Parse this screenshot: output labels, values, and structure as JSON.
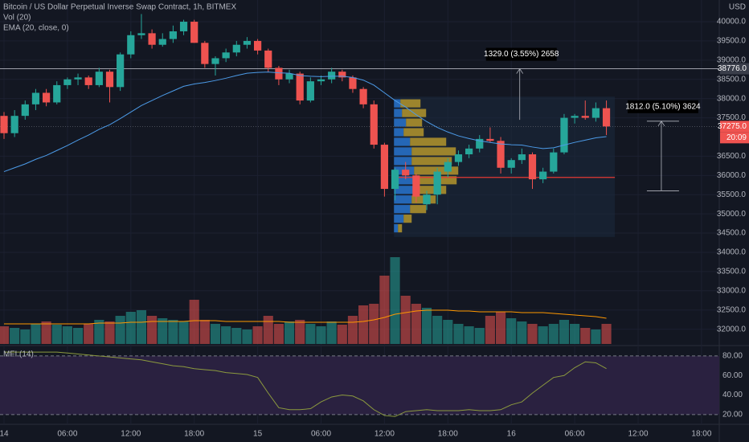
{
  "chart_data": [
    {
      "type": "candlestick",
      "title": "Bitcoin / US Dollar Perpetual Inverse Swap Contract, 1h, BITMEX",
      "unit": "USD",
      "x": [
        0,
        1,
        2,
        3,
        4,
        5,
        6,
        7,
        8,
        9,
        10,
        11,
        12,
        13,
        14,
        15,
        16,
        17,
        18,
        19,
        20,
        21,
        22,
        23,
        24,
        25,
        26,
        27,
        28,
        29,
        30,
        31,
        32,
        33,
        34,
        35,
        36,
        37,
        38,
        39,
        40,
        41,
        42,
        43,
        44,
        45,
        46,
        47,
        48,
        49,
        50,
        51,
        52,
        53,
        54,
        55,
        56,
        57
      ],
      "open": [
        37550,
        37100,
        37550,
        37850,
        38150,
        37900,
        38350,
        38500,
        38550,
        38350,
        38700,
        38300,
        39150,
        39650,
        39700,
        39400,
        39550,
        39750,
        40000,
        39450,
        38900,
        39050,
        39200,
        39400,
        39500,
        39250,
        38800,
        38500,
        38650,
        37950,
        38450,
        38500,
        38700,
        38550,
        38250,
        37850,
        36800,
        35650,
        36150,
        36000,
        35250,
        35500,
        36100,
        36350,
        36550,
        36700,
        36950,
        36900,
        36200,
        36400,
        36550,
        35900,
        36100,
        36600,
        37500,
        37550,
        37500,
        37750
      ],
      "high": [
        37650,
        37700,
        37950,
        38250,
        38250,
        38450,
        38550,
        38650,
        38600,
        38800,
        38750,
        39200,
        39750,
        40200,
        39800,
        39700,
        39900,
        40050,
        40050,
        39500,
        39100,
        39300,
        39500,
        39600,
        39550,
        39300,
        38850,
        38750,
        38700,
        38550,
        38600,
        38800,
        38750,
        38600,
        38300,
        37950,
        36850,
        36200,
        36350,
        36050,
        35600,
        36200,
        36450,
        36650,
        36800,
        37050,
        37250,
        37000,
        36450,
        36700,
        36600,
        36200,
        36700,
        37600,
        37600,
        37950,
        37900,
        37950
      ],
      "low": [
        36950,
        37000,
        37450,
        37700,
        37800,
        37850,
        38250,
        38350,
        38250,
        38300,
        37900,
        38200,
        39050,
        39550,
        39300,
        39350,
        39450,
        39650,
        39450,
        38800,
        38600,
        38950,
        39100,
        39300,
        39150,
        38700,
        38350,
        38400,
        37850,
        37900,
        38350,
        38400,
        38450,
        38150,
        37750,
        36700,
        35450,
        35350,
        35900,
        35300,
        35100,
        35250,
        35950,
        36250,
        36450,
        36600,
        36850,
        36050,
        36050,
        36300,
        35650,
        35800,
        36050,
        36550,
        37350,
        37450,
        37400,
        37050
      ],
      "close": [
        37100,
        37550,
        37850,
        38150,
        37900,
        38350,
        38500,
        38550,
        38350,
        38700,
        38300,
        39150,
        39650,
        39700,
        39400,
        39550,
        39750,
        40000,
        39450,
        38900,
        39050,
        39200,
        39400,
        39500,
        39250,
        38800,
        38500,
        38650,
        37950,
        38450,
        38500,
        38700,
        38550,
        38250,
        37850,
        36800,
        35650,
        36150,
        36000,
        35450,
        35500,
        36100,
        36350,
        36550,
        36700,
        36950,
        36900,
        36200,
        36400,
        36550,
        35900,
        36100,
        36600,
        37500,
        37550,
        37500,
        37750,
        37275
      ],
      "up_color": "#26a69a",
      "down_color": "#ef5350",
      "ema": {
        "name": "EMA (20, close, 0)",
        "color": "#4c9be8",
        "values": [
          36100,
          36200,
          36300,
          36420,
          36520,
          36650,
          36780,
          36920,
          37050,
          37200,
          37320,
          37480,
          37650,
          37820,
          37950,
          38080,
          38200,
          38320,
          38380,
          38420,
          38470,
          38530,
          38600,
          38660,
          38680,
          38690,
          38670,
          38660,
          38600,
          38580,
          38570,
          38580,
          38580,
          38550,
          38480,
          38350,
          38150,
          37950,
          37780,
          37580,
          37400,
          37250,
          37130,
          37030,
          36960,
          36900,
          36860,
          36820,
          36800,
          36790,
          36740,
          36700,
          36720,
          36790,
          36860,
          36920,
          36980,
          37010
        ]
      },
      "ylim": [
        31574,
        40565
      ],
      "yticks": [
        {
          "value": 32000,
          "label": "32000.0"
        },
        {
          "value": 32500,
          "label": "32500.0"
        },
        {
          "value": 33000,
          "label": "33000.0"
        },
        {
          "value": 33500,
          "label": "33500.0"
        },
        {
          "value": 34000,
          "label": "34000.0"
        },
        {
          "value": 34500,
          "label": "34500.0"
        },
        {
          "value": 35000,
          "label": "35000.0"
        },
        {
          "value": 35500,
          "label": "35500.0"
        },
        {
          "value": 36000,
          "label": "36000.0"
        },
        {
          "value": 36500,
          "label": "36500.0"
        },
        {
          "value": 37500,
          "label": "37500.0"
        },
        {
          "value": 38000,
          "label": "38000.0"
        },
        {
          "value": 38500,
          "label": "38500.0"
        },
        {
          "value": 39000,
          "label": "39000.0"
        },
        {
          "value": 39500,
          "label": "39500.0"
        },
        {
          "value": 40000,
          "label": "40000.0"
        }
      ],
      "price_markers": [
        {
          "value": 38776,
          "label": "38776.0",
          "color": "#3a3e4a"
        },
        {
          "value": 37275,
          "label": "37275.0",
          "color": "#ef5350"
        }
      ],
      "countdown": "20:09",
      "volume_profile": {
        "x_from": 36.9,
        "x_to": 57.8,
        "price_from": 34400,
        "price_to": 38050,
        "poc": 35950,
        "prices": [
          37875,
          37625,
          37375,
          37125,
          36875,
          36625,
          36375,
          36125,
          35875,
          35625,
          35375,
          35125,
          34875,
          34625
        ],
        "up": [
          8,
          10,
          15,
          12,
          20,
          22,
          22,
          25,
          28,
          25,
          22,
          20,
          12,
          5
        ],
        "down": [
          25,
          30,
          20,
          25,
          45,
          55,
          50,
          55,
          50,
          40,
          30,
          20,
          10,
          5
        ],
        "up_color": "#2979d8",
        "down_color": "#c9a52c"
      },
      "measures": [
        {
          "label": "1329.0 (3.55%) 2658",
          "x": 48.8,
          "from": 37447,
          "to": 38776
        },
        {
          "label": "1812.0 (5.10%) 3624",
          "x": 62.2,
          "from": 35600,
          "to": 37412
        }
      ]
    },
    {
      "type": "bar",
      "title": "Vol (20)",
      "values": [
        22,
        20,
        18,
        25,
        28,
        24,
        22,
        20,
        25,
        30,
        28,
        35,
        40,
        42,
        35,
        32,
        30,
        28,
        55,
        30,
        25,
        22,
        20,
        18,
        22,
        35,
        25,
        28,
        30,
        25,
        22,
        28,
        24,
        35,
        48,
        50,
        85,
        108,
        60,
        50,
        45,
        35,
        30,
        25,
        22,
        20,
        35,
        40,
        32,
        28,
        25,
        22,
        25,
        30,
        25,
        20,
        18,
        25
      ],
      "ma": {
        "color": "#ff9800",
        "values": [
          25,
          25,
          25,
          25,
          25,
          25,
          25,
          25,
          25,
          26,
          26,
          26,
          27,
          27,
          28,
          28,
          28,
          28,
          29,
          29,
          29,
          28,
          28,
          28,
          28,
          28,
          28,
          27,
          27,
          27,
          27,
          27,
          27,
          27,
          28,
          30,
          33,
          37,
          39,
          41,
          42,
          42,
          42,
          41,
          41,
          40,
          40,
          40,
          40,
          39,
          39,
          39,
          38,
          37,
          36,
          35,
          34,
          32
        ]
      },
      "ylim": [
        0,
        110
      ]
    },
    {
      "type": "line",
      "title": "MFI (14)",
      "color": "#8c9a3e",
      "band_color": "#2a2140",
      "values": [
        84,
        84,
        84,
        84,
        84,
        84,
        83,
        82,
        81,
        80,
        79,
        78,
        77,
        76,
        74,
        72,
        70,
        69,
        67,
        66,
        65,
        63,
        62,
        61,
        58,
        42,
        27,
        25,
        25,
        26,
        33,
        38,
        40,
        39,
        34,
        25,
        19,
        18,
        23,
        24,
        25,
        24,
        24,
        24,
        25,
        24,
        24,
        25,
        30,
        33,
        42,
        50,
        58,
        60,
        68,
        74,
        73,
        67
      ],
      "ylim": [
        10,
        89
      ],
      "yticks": [
        {
          "value": 20,
          "label": "20.00"
        },
        {
          "value": 40,
          "label": "40.00"
        },
        {
          "value": 60,
          "label": "60.00"
        },
        {
          "value": 80,
          "label": "80.00"
        }
      ],
      "bands": [
        20,
        80
      ],
      "xlim": [
        -0.38,
        67.68
      ],
      "xticks": [
        {
          "value": 0,
          "label": "14"
        },
        {
          "value": 6,
          "label": "06:00"
        },
        {
          "value": 12,
          "label": "12:00"
        },
        {
          "value": 18,
          "label": "18:00"
        },
        {
          "value": 24,
          "label": "15"
        },
        {
          "value": 30,
          "label": "06:00"
        },
        {
          "value": 36,
          "label": "12:00"
        },
        {
          "value": 42,
          "label": "18:00"
        },
        {
          "value": 48,
          "label": "16"
        },
        {
          "value": 54,
          "label": "06:00"
        },
        {
          "value": 60,
          "label": "12:00"
        },
        {
          "value": 66,
          "label": "18:00"
        }
      ]
    }
  ]
}
